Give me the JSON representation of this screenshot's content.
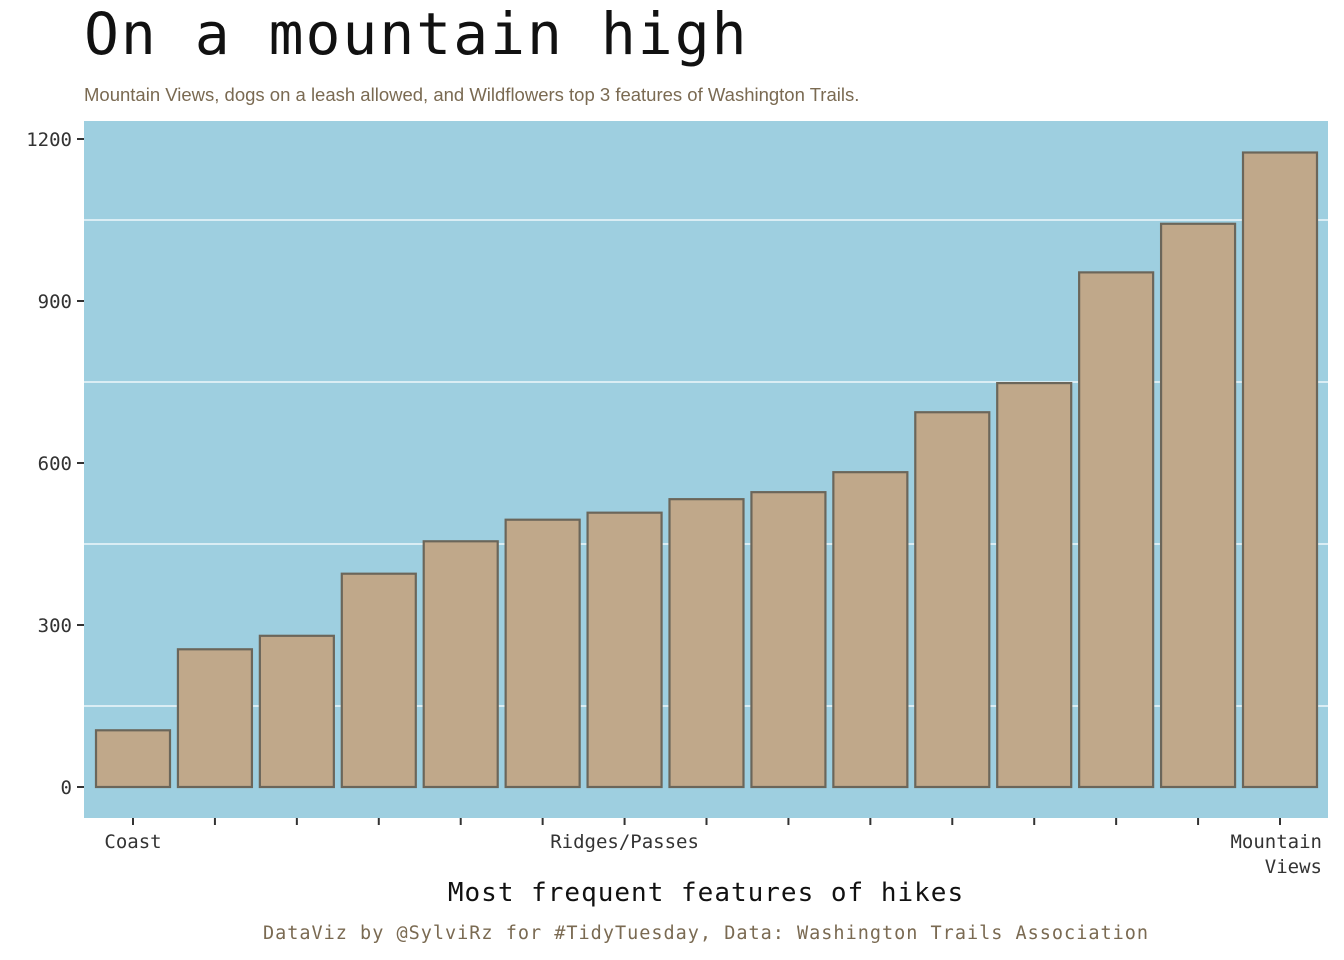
{
  "title": "On a mountain high",
  "subtitle": "Mountain Views, dogs on a leash allowed, and Wildflowers top 3 features of Washington Trails.",
  "caption": "DataViz by @SylviRz for #TidyTuesday, Data: Washington Trails Association",
  "colors": {
    "panel_background": "#9ecfe0",
    "bar_fill": "#c0a88a",
    "bar_outline": "#6b665a",
    "grid": "#ffffff",
    "subtitle_text": "#7a6a52"
  },
  "chart_data": {
    "type": "bar",
    "title": "On a mountain high",
    "subtitle": "Mountain Views, dogs on a leash allowed, and Wildflowers top 3 features of Washington Trails.",
    "xlabel": "Most frequent features of hikes",
    "ylabel": "",
    "categories": [
      "Coast",
      "",
      "",
      "",
      "",
      "",
      "Ridges/Passes",
      "",
      "",
      "",
      "",
      "",
      "",
      "",
      "Mountain Views"
    ],
    "values": [
      105,
      255,
      280,
      395,
      455,
      495,
      508,
      533,
      546,
      583,
      694,
      748,
      953,
      1043,
      1175
    ],
    "ylim": [
      -58,
      1235
    ],
    "yticks": [
      0,
      300,
      600,
      900,
      1200
    ],
    "grid": true,
    "legend": "none"
  }
}
